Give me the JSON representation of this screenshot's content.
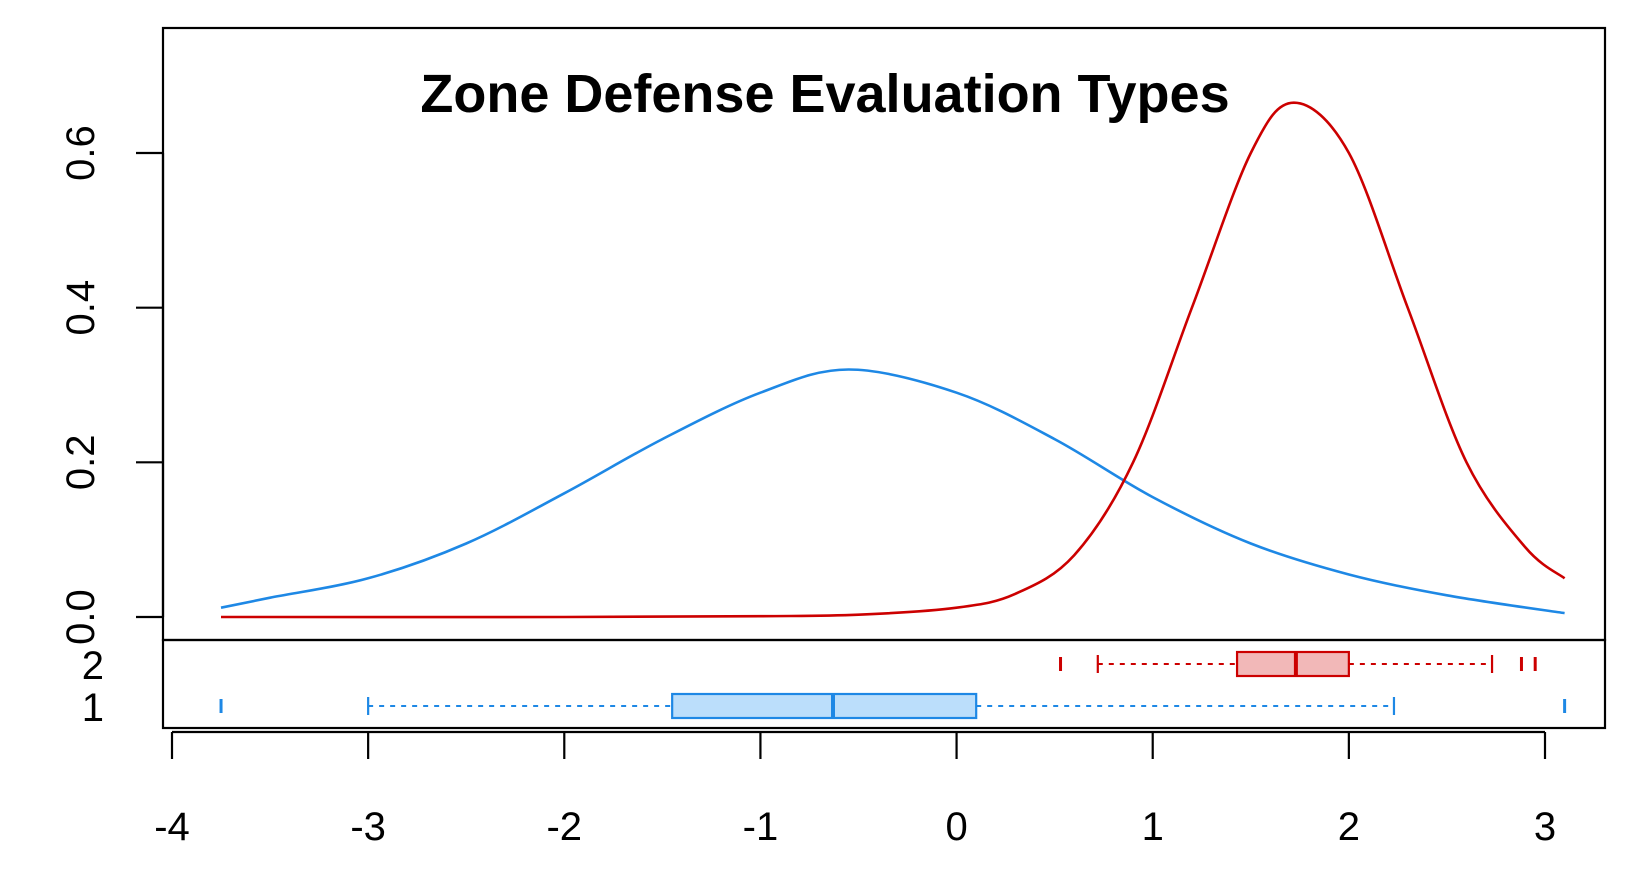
{
  "chart_data": {
    "type": "density",
    "title": "Zone Defense Evaluation Types",
    "xlabel": "",
    "ylabel": "",
    "xlim": [
      -4,
      3
    ],
    "ylim": [
      0,
      0.7
    ],
    "x_ticks": [
      "-4",
      "-3",
      "-2",
      "-1",
      "0",
      "1",
      "2",
      "3"
    ],
    "y_ticks": [
      "0.0",
      "0.2",
      "0.4",
      "0.6"
    ],
    "boxplot_row_labels": [
      "1",
      "2"
    ],
    "series": [
      {
        "color": "#1E88E5",
        "fill": "#BBDEFB",
        "density": {
          "x": [
            -3.75,
            -3.5,
            -3.0,
            -2.5,
            -2.0,
            -1.5,
            -1.0,
            -0.55,
            0.0,
            0.5,
            1.0,
            1.5,
            2.0,
            2.5,
            3.1
          ],
          "y": [
            0.012,
            0.025,
            0.05,
            0.095,
            0.16,
            0.23,
            0.29,
            0.32,
            0.29,
            0.23,
            0.155,
            0.095,
            0.055,
            0.028,
            0.005
          ]
        },
        "boxplot": {
          "whisker_low": -3.0,
          "q1": -1.45,
          "median": -0.63,
          "q3": 0.1,
          "whisker_high": 2.23,
          "outliers": [
            -3.75,
            3.1
          ]
        }
      },
      {
        "color": "#CC0000",
        "fill": "#F2B8B8",
        "density": {
          "x": [
            -3.75,
            -2.0,
            -1.0,
            -0.5,
            0.0,
            0.3,
            0.6,
            0.9,
            1.2,
            1.5,
            1.72,
            2.0,
            2.3,
            2.6,
            2.9,
            3.1
          ],
          "y": [
            0.0,
            0.0,
            0.001,
            0.003,
            0.012,
            0.03,
            0.08,
            0.2,
            0.4,
            0.6,
            0.665,
            0.6,
            0.4,
            0.2,
            0.09,
            0.05
          ]
        },
        "boxplot": {
          "whisker_low": 0.72,
          "q1": 1.43,
          "median": 1.73,
          "q3": 2.0,
          "whisker_high": 2.73,
          "outliers": [
            0.53,
            2.88,
            2.95
          ]
        }
      }
    ]
  }
}
